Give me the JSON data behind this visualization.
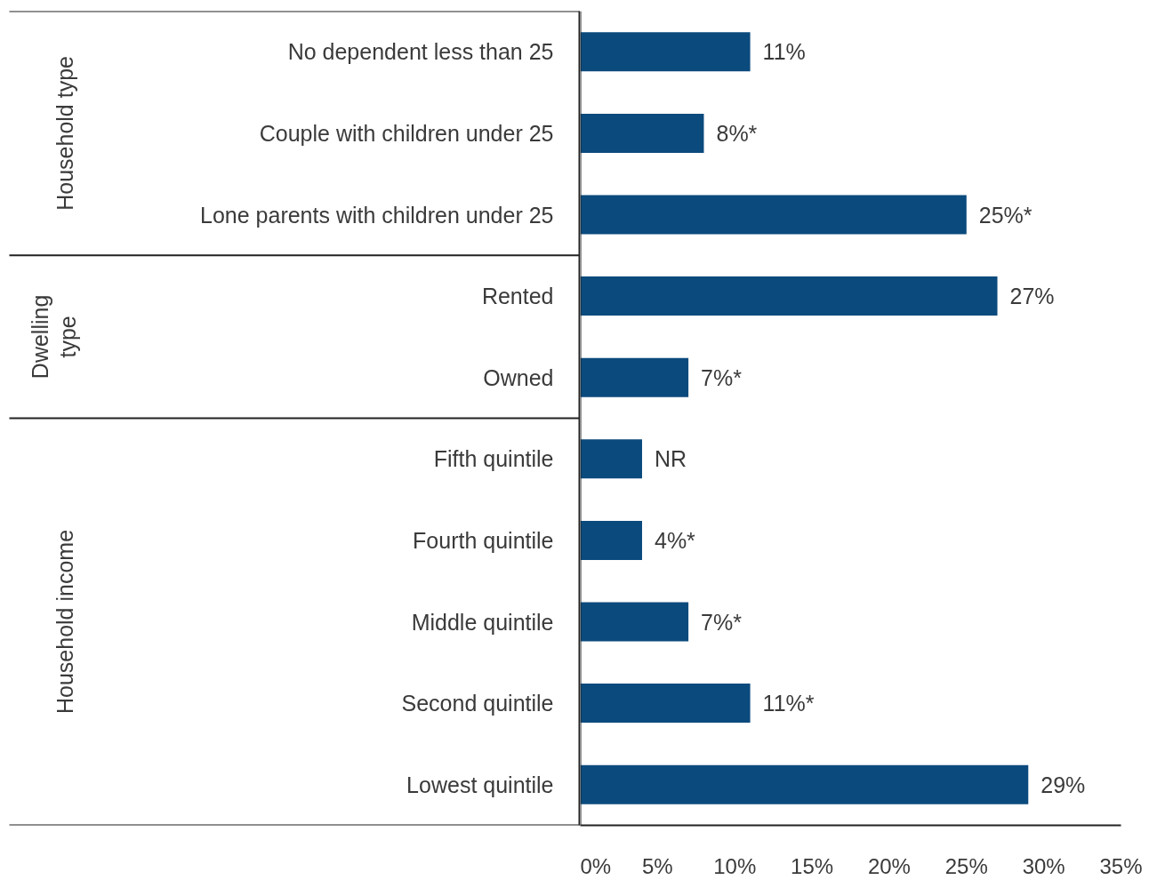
{
  "chart_data": {
    "type": "bar",
    "orientation": "horizontal",
    "categories": [
      "No dependent less than 25",
      "Couple with children under 25",
      "Lone parents with children under 25",
      "Rented",
      "Owned",
      "Fifth quintile",
      "Fourth quintile",
      "Middle quintile",
      "Second quintile",
      "Lowest quintile"
    ],
    "values": [
      11,
      8,
      25,
      27,
      7,
      4,
      4,
      7,
      11,
      29
    ],
    "value_labels": [
      "11%",
      "8%*",
      "25%*",
      "27%",
      "7%*",
      "NR",
      "4%*",
      "7%*",
      "11%*",
      "29%"
    ],
    "color": "#0b4a7d",
    "xlim": [
      0,
      35
    ],
    "xticks": [
      {
        "value": 0,
        "label": "0%"
      },
      {
        "value": 5,
        "label": "5%"
      },
      {
        "value": 10,
        "label": "10%"
      },
      {
        "value": 15,
        "label": "15%"
      },
      {
        "value": 20,
        "label": "20%"
      },
      {
        "value": 25,
        "label": "25%"
      },
      {
        "value": 30,
        "label": "30%"
      },
      {
        "value": 35,
        "label": "35%"
      }
    ],
    "annotations": [
      "Household type",
      "Dwelling type",
      "Household income"
    ],
    "grid": false
  }
}
